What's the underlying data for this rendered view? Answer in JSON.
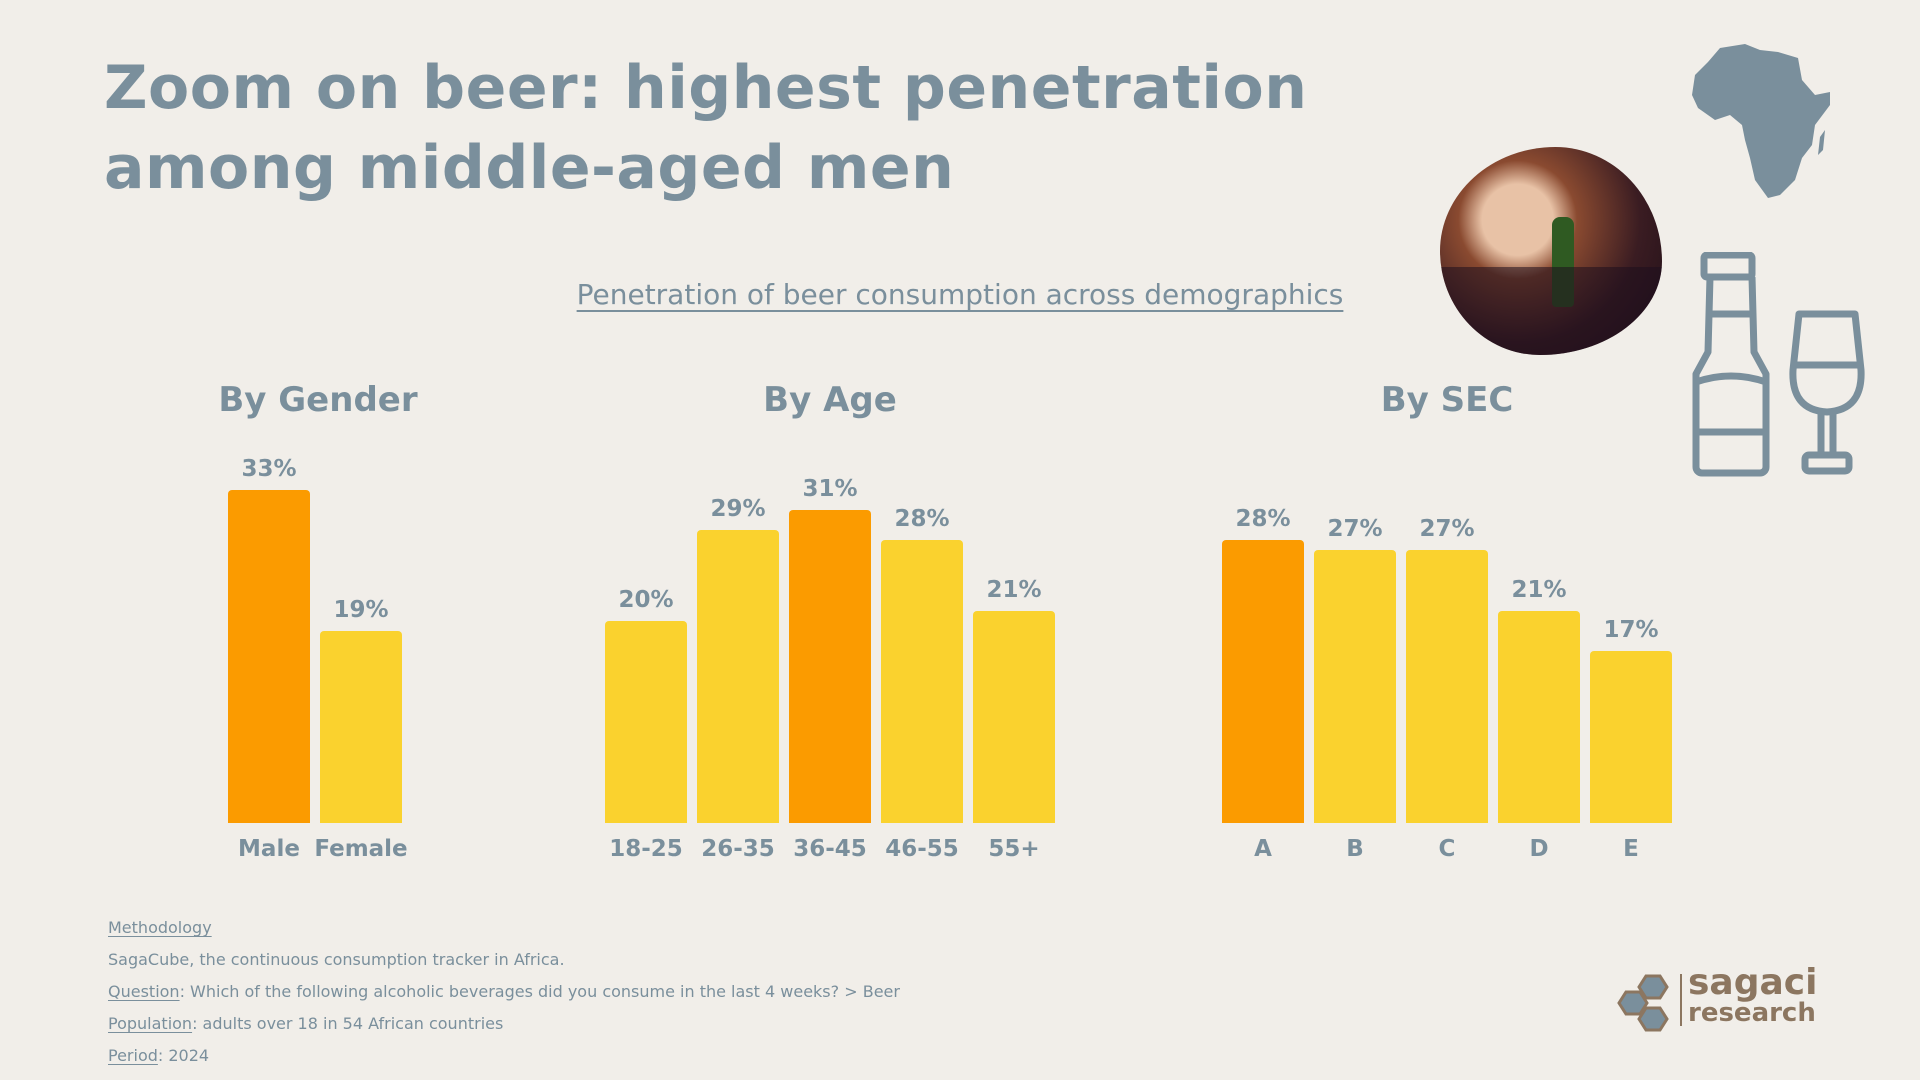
{
  "title": "Zoom on beer: highest penetration among middle-aged men",
  "subtitle": "Penetration of beer consumption across demographics",
  "colors": {
    "background": "#f1eee9",
    "text": "#7a8f9c",
    "highlight": "#fb9b00",
    "bar": "#fad22e",
    "logo": "#8c7660"
  },
  "chart_data": [
    {
      "type": "bar",
      "title": "By Gender",
      "categories": [
        "Male",
        "Female"
      ],
      "values": [
        33,
        19
      ],
      "labels": [
        "33%",
        "19%"
      ],
      "highlight": [
        0
      ],
      "ylim": [
        0,
        35
      ]
    },
    {
      "type": "bar",
      "title": "By Age",
      "categories": [
        "18-25",
        "26-35",
        "36-45",
        "46-55",
        "55+"
      ],
      "values": [
        20,
        29,
        31,
        28,
        21
      ],
      "labels": [
        "20%",
        "29%",
        "31%",
        "28%",
        "21%"
      ],
      "highlight": [
        2
      ],
      "ylim": [
        0,
        35
      ]
    },
    {
      "type": "bar",
      "title": "By SEC",
      "categories": [
        "A",
        "B",
        "C",
        "D",
        "E"
      ],
      "values": [
        28,
        27,
        27,
        21,
        17
      ],
      "labels": [
        "28%",
        "27%",
        "27%",
        "21%",
        "17%"
      ],
      "highlight": [
        0
      ],
      "ylim": [
        0,
        35
      ]
    }
  ],
  "footer": {
    "methodology_label": "Methodology",
    "methodology_text": "SagaCube, the continuous consumption tracker in Africa.",
    "question_label": "Question",
    "question_text": ": Which of the following alcoholic beverages did you consume in the last 4 weeks? > Beer",
    "population_label": "Population",
    "population_text": ": adults over 18 in 54 African countries",
    "period_label": "Period",
    "period_text": ": 2024"
  },
  "logo": {
    "line1": "sagaci",
    "line2": "research"
  },
  "icons": [
    "africa-map-icon",
    "beer-bottle-icon",
    "wine-glass-icon",
    "sagaci-hexagon-logo"
  ]
}
